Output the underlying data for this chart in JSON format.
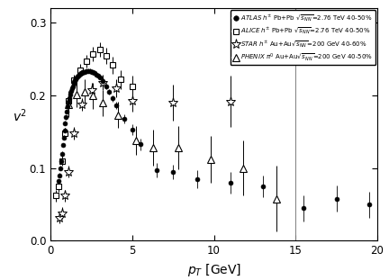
{
  "xlim": [
    0,
    20
  ],
  "ylim": [
    0,
    0.32
  ],
  "yticks": [
    0,
    0.1,
    0.2,
    0.3
  ],
  "xticks": [
    0,
    5,
    10,
    15,
    20
  ],
  "vline_x": 15.0,
  "atlas_pt": [
    0.5,
    0.55,
    0.6,
    0.65,
    0.7,
    0.75,
    0.8,
    0.85,
    0.9,
    0.95,
    1.0,
    1.05,
    1.1,
    1.15,
    1.2,
    1.25,
    1.3,
    1.35,
    1.4,
    1.45,
    1.5,
    1.55,
    1.6,
    1.65,
    1.7,
    1.75,
    1.8,
    1.85,
    1.9,
    1.95,
    2.0,
    2.1,
    2.2,
    2.3,
    2.4,
    2.5,
    2.6,
    2.7,
    2.8,
    2.9,
    3.0,
    3.2,
    3.4,
    3.6,
    3.8,
    4.0,
    4.5,
    5.0,
    5.5,
    6.5,
    7.5,
    9.0,
    11.0,
    13.0,
    15.5,
    17.5,
    19.5
  ],
  "atlas_v2": [
    0.082,
    0.09,
    0.1,
    0.11,
    0.12,
    0.132,
    0.142,
    0.152,
    0.162,
    0.17,
    0.178,
    0.185,
    0.191,
    0.196,
    0.201,
    0.206,
    0.21,
    0.213,
    0.216,
    0.219,
    0.221,
    0.223,
    0.225,
    0.226,
    0.228,
    0.229,
    0.23,
    0.231,
    0.231,
    0.232,
    0.232,
    0.233,
    0.234,
    0.234,
    0.234,
    0.233,
    0.232,
    0.231,
    0.229,
    0.227,
    0.225,
    0.22,
    0.213,
    0.205,
    0.196,
    0.187,
    0.168,
    0.153,
    0.133,
    0.097,
    0.095,
    0.085,
    0.08,
    0.075,
    0.045,
    0.058,
    0.05
  ],
  "atlas_ey": [
    0.003,
    0.003,
    0.003,
    0.003,
    0.003,
    0.003,
    0.003,
    0.003,
    0.003,
    0.003,
    0.003,
    0.003,
    0.003,
    0.003,
    0.003,
    0.003,
    0.003,
    0.003,
    0.003,
    0.003,
    0.003,
    0.003,
    0.003,
    0.003,
    0.003,
    0.003,
    0.003,
    0.003,
    0.003,
    0.003,
    0.003,
    0.003,
    0.003,
    0.003,
    0.003,
    0.003,
    0.003,
    0.003,
    0.003,
    0.003,
    0.003,
    0.004,
    0.004,
    0.004,
    0.004,
    0.005,
    0.006,
    0.007,
    0.008,
    0.01,
    0.01,
    0.012,
    0.015,
    0.015,
    0.018,
    0.018,
    0.018
  ],
  "alice_pt": [
    0.3,
    0.5,
    0.7,
    0.9,
    1.1,
    1.4,
    1.8,
    2.2,
    2.6,
    3.0,
    3.4,
    3.8,
    4.3,
    5.0
  ],
  "alice_v2": [
    0.062,
    0.075,
    0.11,
    0.148,
    0.193,
    0.221,
    0.235,
    0.247,
    0.257,
    0.263,
    0.255,
    0.242,
    0.222,
    0.212
  ],
  "alice_ey": [
    0.008,
    0.007,
    0.007,
    0.007,
    0.008,
    0.008,
    0.008,
    0.009,
    0.01,
    0.01,
    0.011,
    0.012,
    0.013,
    0.015
  ],
  "star_pt": [
    0.55,
    0.7,
    0.9,
    1.1,
    1.4,
    1.9,
    2.5,
    3.2,
    4.0,
    5.0,
    7.5,
    11.0
  ],
  "star_v2": [
    0.032,
    0.038,
    0.062,
    0.095,
    0.148,
    0.188,
    0.208,
    0.218,
    0.21,
    0.193,
    0.19,
    0.192
  ],
  "star_ey": [
    0.008,
    0.008,
    0.008,
    0.008,
    0.009,
    0.009,
    0.01,
    0.011,
    0.012,
    0.015,
    0.025,
    0.035
  ],
  "phenix_pt": [
    1.1,
    1.6,
    2.1,
    2.6,
    3.2,
    4.1,
    5.2,
    6.3,
    7.8,
    9.8,
    11.8,
    13.8
  ],
  "phenix_v2": [
    0.188,
    0.202,
    0.205,
    0.2,
    0.19,
    0.173,
    0.138,
    0.128,
    0.128,
    0.112,
    0.1,
    0.058
  ],
  "phenix_ey": [
    0.018,
    0.018,
    0.018,
    0.018,
    0.018,
    0.018,
    0.02,
    0.025,
    0.03,
    0.032,
    0.038,
    0.045
  ],
  "bg_color": "#ffffff"
}
